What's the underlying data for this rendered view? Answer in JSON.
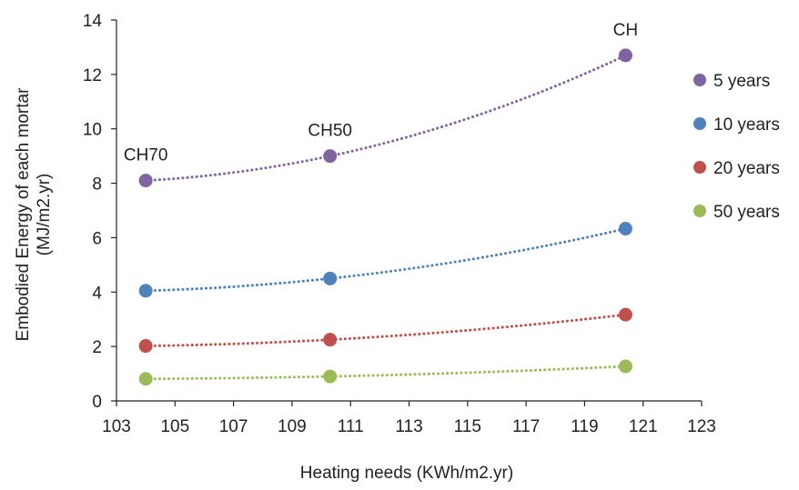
{
  "chart_data": {
    "type": "scatter",
    "xlabel": "Heating needs (KWh/m2.yr)",
    "ylabel": "Embodied Energy of each mortar",
    "ylabel_line2": "(MJ/m2.yr)",
    "xlim": [
      103,
      123
    ],
    "ylim": [
      0,
      14
    ],
    "xticks": [
      103,
      105,
      107,
      109,
      111,
      113,
      115,
      117,
      119,
      121,
      123
    ],
    "yticks": [
      0,
      2,
      4,
      6,
      8,
      10,
      12,
      14
    ],
    "grid": false,
    "legend_position": "right",
    "x": [
      104,
      110.3,
      120.4
    ],
    "series": [
      {
        "name": "5 years",
        "color": "#8064a2",
        "values": [
          8.1,
          9.0,
          12.7
        ],
        "trendline": "dotted"
      },
      {
        "name": "10 years",
        "color": "#4f81bd",
        "values": [
          4.05,
          4.5,
          6.33
        ],
        "trendline": "dotted"
      },
      {
        "name": "20 years",
        "color": "#c0504d",
        "values": [
          2.02,
          2.25,
          3.17
        ],
        "trendline": "dotted"
      },
      {
        "name": "50 years",
        "color": "#9bbb59",
        "values": [
          0.81,
          0.9,
          1.27
        ],
        "trendline": "dotted"
      }
    ],
    "annotations": [
      {
        "text": "CH70",
        "x": 104,
        "y": 8.1
      },
      {
        "text": "CH50",
        "x": 110.3,
        "y": 9.0
      },
      {
        "text": "CH",
        "x": 120.4,
        "y": 12.7
      }
    ]
  }
}
